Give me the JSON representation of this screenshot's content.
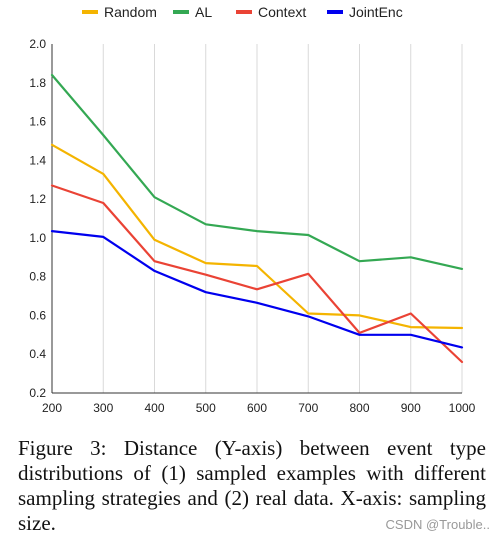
{
  "caption": "Figure 3: Distance (Y-axis) between event type distributions of (1) sampled examples with different sampling strategies and (2) real data.  X-axis: sampling size.",
  "watermark": "CSDN @Trouble..",
  "chart_data": {
    "type": "line",
    "title": "",
    "xlabel": "",
    "ylabel": "",
    "x": [
      200,
      300,
      400,
      500,
      600,
      700,
      800,
      900,
      1000
    ],
    "xlim": [
      200,
      1000
    ],
    "ylim": [
      0.2,
      2.0
    ],
    "x_ticks": [
      "200",
      "300",
      "400",
      "500",
      "600",
      "700",
      "800",
      "900",
      "1000"
    ],
    "y_ticks": [
      "0.2",
      "0.4",
      "0.6",
      "0.8",
      "1.0",
      "1.2",
      "1.4",
      "1.6",
      "1.8",
      "2.0"
    ],
    "grid": "vertical",
    "legend_position": "top",
    "series": [
      {
        "name": "Random",
        "color": "#f4b400",
        "values": [
          1.48,
          1.33,
          0.99,
          0.87,
          0.855,
          0.61,
          0.6,
          0.54,
          0.535
        ]
      },
      {
        "name": "AL",
        "color": "#34a853",
        "values": [
          1.84,
          1.53,
          1.21,
          1.07,
          1.035,
          1.015,
          0.88,
          0.9,
          0.84
        ]
      },
      {
        "name": "Context",
        "color": "#ea4335",
        "values": [
          1.27,
          1.18,
          0.88,
          0.81,
          0.735,
          0.815,
          0.51,
          0.61,
          0.36
        ]
      },
      {
        "name": "JointEnc",
        "color": "#0000ee",
        "values": [
          1.035,
          1.005,
          0.83,
          0.72,
          0.665,
          0.595,
          0.5,
          0.5,
          0.435
        ]
      }
    ]
  }
}
